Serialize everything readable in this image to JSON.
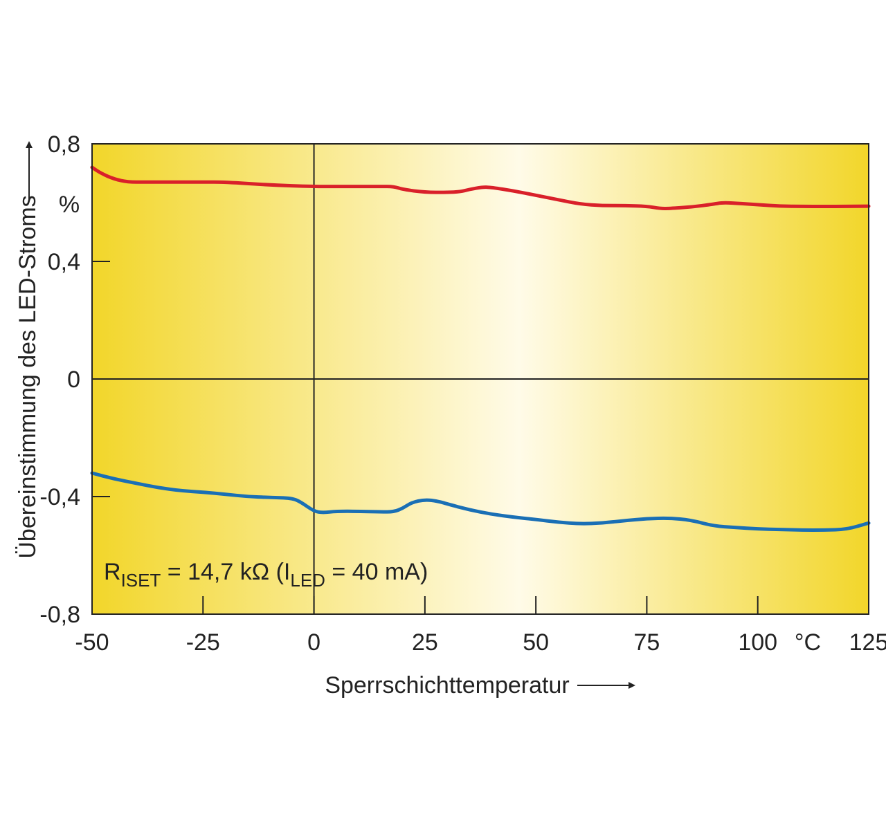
{
  "chart_data": {
    "type": "line",
    "xlabel": "Sperrschichttemperatur",
    "ylabel": "Übereinstimmung des LED-Stroms",
    "y_unit": "%",
    "x_unit": "°C",
    "xlim": [
      -50,
      125
    ],
    "ylim": [
      -0.8,
      0.8
    ],
    "x_ticks": [
      -50,
      -25,
      0,
      25,
      50,
      75,
      100,
      125
    ],
    "x_tick_labels": [
      "-50",
      "-25",
      "0",
      "25",
      "50",
      "75",
      "100",
      "125"
    ],
    "y_ticks": [
      0.8,
      0.4,
      0,
      -0.4,
      -0.8
    ],
    "y_tick_labels": [
      "0,8",
      "0,4",
      "0",
      "-0,4",
      "-0,8"
    ],
    "grid": false,
    "zero_lines": true,
    "background_colors": {
      "edge": "#f2d62a",
      "center": "#fffbe8"
    },
    "annotation": {
      "r_main": "R",
      "r_sub": "ISET",
      "mid": " = 14,7 kΩ (I",
      "i_sub": "LED",
      "end": " = 40 mA)"
    },
    "series": [
      {
        "color": "#d9202a",
        "x": [
          -50,
          -48,
          -45,
          -42,
          -38,
          -30,
          -25,
          -20,
          -10,
          0,
          5,
          10,
          15,
          18,
          20,
          25,
          30,
          33,
          35,
          38,
          40,
          45,
          50,
          55,
          60,
          65,
          70,
          75,
          78,
          80,
          85,
          90,
          92,
          95,
          100,
          105,
          110,
          115,
          120,
          125
        ],
        "y": [
          0.72,
          0.7,
          0.68,
          0.67,
          0.67,
          0.67,
          0.67,
          0.67,
          0.66,
          0.655,
          0.655,
          0.655,
          0.655,
          0.655,
          0.645,
          0.635,
          0.635,
          0.637,
          0.645,
          0.653,
          0.652,
          0.64,
          0.625,
          0.61,
          0.595,
          0.59,
          0.59,
          0.588,
          0.58,
          0.58,
          0.585,
          0.595,
          0.6,
          0.598,
          0.593,
          0.588,
          0.587,
          0.587,
          0.587,
          0.588
        ]
      },
      {
        "color": "#1a6fb5",
        "x": [
          -50,
          -45,
          -40,
          -35,
          -30,
          -25,
          -20,
          -15,
          -10,
          -5,
          -3,
          0,
          2,
          5,
          10,
          15,
          18,
          20,
          22,
          25,
          28,
          30,
          35,
          40,
          45,
          50,
          55,
          60,
          65,
          70,
          75,
          80,
          85,
          90,
          95,
          100,
          105,
          110,
          115,
          120,
          125
        ],
        "y": [
          -0.32,
          -0.34,
          -0.355,
          -0.37,
          -0.38,
          -0.385,
          -0.392,
          -0.4,
          -0.403,
          -0.405,
          -0.418,
          -0.45,
          -0.455,
          -0.45,
          -0.45,
          -0.452,
          -0.452,
          -0.44,
          -0.42,
          -0.41,
          -0.416,
          -0.425,
          -0.445,
          -0.46,
          -0.47,
          -0.478,
          -0.487,
          -0.493,
          -0.49,
          -0.482,
          -0.475,
          -0.473,
          -0.48,
          -0.5,
          -0.505,
          -0.51,
          -0.512,
          -0.514,
          -0.514,
          -0.512,
          -0.49
        ]
      }
    ]
  }
}
